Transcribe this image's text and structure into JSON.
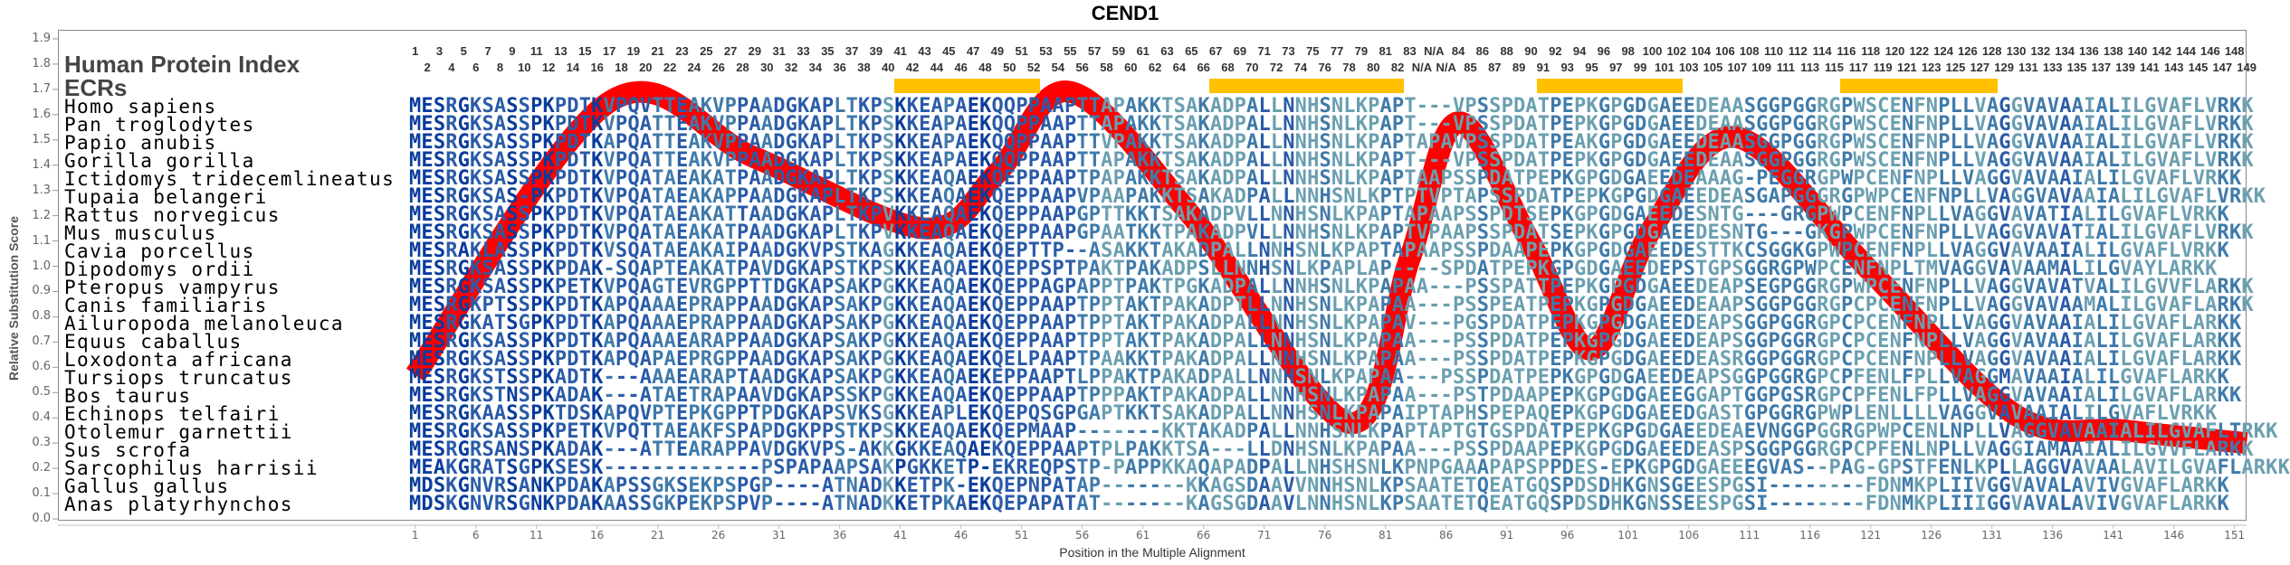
{
  "title": "CEND1",
  "labels": {
    "human_protein_index": "Human Protein Index",
    "ecrs": "ECRs"
  },
  "colors": {
    "curve": "#ff0000",
    "ecr": "#ffc000",
    "conserved": "#0a3c9c",
    "mostly_conserved": "#2a5ba8",
    "partial": "#3f7aaa",
    "variable": "#6a9fb0"
  },
  "header_odd": [
    "1",
    "3",
    "5",
    "7",
    "9",
    "11",
    "13",
    "15",
    "17",
    "19",
    "21",
    "23",
    "25",
    "27",
    "29",
    "31",
    "33",
    "35",
    "37",
    "39",
    "41",
    "43",
    "45",
    "47",
    "49",
    "51",
    "53",
    "55",
    "57",
    "59",
    "61",
    "63",
    "65",
    "67",
    "69",
    "71",
    "73",
    "75",
    "77",
    "79",
    "81",
    "83",
    "N/A",
    "84",
    "86",
    "88",
    "90",
    "92",
    "94",
    "96",
    "98",
    "100",
    "102",
    "104",
    "106",
    "108",
    "110",
    "112",
    "114",
    "116",
    "118",
    "120",
    "122",
    "124",
    "126",
    "128",
    "130",
    "132",
    "134",
    "136",
    "138",
    "140",
    "142",
    "144",
    "146",
    "148"
  ],
  "header_even": [
    "2",
    "4",
    "6",
    "8",
    "10",
    "12",
    "14",
    "16",
    "18",
    "20",
    "22",
    "24",
    "26",
    "28",
    "30",
    "32",
    "34",
    "36",
    "38",
    "40",
    "42",
    "44",
    "46",
    "48",
    "50",
    "52",
    "54",
    "56",
    "58",
    "60",
    "62",
    "64",
    "66",
    "68",
    "70",
    "72",
    "74",
    "76",
    "78",
    "80",
    "82",
    "N/A",
    "N/A",
    "85",
    "87",
    "89",
    "91",
    "93",
    "95",
    "97",
    "99",
    "101",
    "103",
    "105",
    "107",
    "109",
    "111",
    "113",
    "115",
    "117",
    "119",
    "121",
    "123",
    "125",
    "127",
    "129",
    "131",
    "133",
    "135",
    "137",
    "139",
    "141",
    "143",
    "145",
    "147",
    "149"
  ],
  "ecr_ranges": [
    [
      41,
      52
    ],
    [
      67,
      82
    ],
    [
      94,
      105
    ],
    [
      119,
      131
    ]
  ],
  "species": [
    {
      "name": "Homo sapiens",
      "seq": "MESRGKSASSPKPDTKVPQVTTEAKVPPAADGKAPLTKPSKKEAPAEKQQPPAAPTTAPAKKTSAKADPALLNNHSNLKPAPT---VPSSPDATPEPKGPGDGAEEDEAASGGPGGRGPWSCENFNPLLVAGGVAVAAIALILGVAFLVRKK"
    },
    {
      "name": "Pan troglodytes",
      "seq": "MESRGKSASSPKPDTKVPQATTEAKVPPAADGKAPLTKPSKKEAPAEKQQPPAAPTTAPAKKTSAKADPALLNNHSNLKPAPT---VPSSPDATPEPKGPGDGAEEDEAASGGPGGRGPWSCENFNPLLVAGGVAVAAIALILGVAFLVRKK"
    },
    {
      "name": "Papio anubis",
      "seq": "MESRGKSASSPKPDTKAPQATTEAKVPPAADGKAPLTKPSKKEAPAEKQQPPAAPTTVPAKKTSAKADPALLNNHSNLKPAPTAPAVPSSPDATPEAKGPGDGAEEDEAASGGPGGRGPWSCENFNPLLVAGGVAVAAIALILGVAFLVRKK"
    },
    {
      "name": "Gorilla gorilla",
      "seq": "MESRGKSASSPKPDTKVPQATTEAKVPPAADGKAPLTKPSKKEAPAEKQQPPAAPTTAPAKKTSAKADPALLNNHSNLKPAPT---VPSSPDATPEPKGPGDGAEEDEAASGGPGGRGPWSCENFNPLLVAGGVAVAAIALILGVAFLVRKK"
    },
    {
      "name": "Ictidomys tridecemlineatus",
      "seq": "MESRGKSASSPKPDTKVPQATAEAKATPAADGKAPLTKPSKKEAQAEKQEPPAAPTPAPAKKTSAKADPALLNNHSNLKPAPTAAPSSPDATPEPKGPGDGAEEDEAAAG-PEGGRGPWPCENFNPLLVAGGVAVAAIALILGVAFLVRKK"
    },
    {
      "name": "Tupaia belangeri",
      "seq": "MESRGKSAS-PKPDTKVPQATAEAKAPPAADGKAPLTKPSKKEAQAEKQEPPAAPVPAAPAKKTSAKADPALLNNHSNLKPTPTVPTAPSSPDATPEPKGPGDGAEEDEASGAPGGGRGPWPCENFNPLLVAGGVAVAAIALILGVAFLVRKK"
    },
    {
      "name": "Rattus norvegicus",
      "seq": "MESRGKSASSPKPDTKVPQATAEAKATTAADGKAPLTKPVKKEAQAEKQEPPAAPGPTTKKTSAKADPVLLNNHSNLKPAPTAPAAPSSPDTSEPKGPGDGAEEDESNTG---GRGPWPCENFNPLLVAGGVAVATIALILGVAFLVRKK"
    },
    {
      "name": "Mus musculus",
      "seq": "MESRGKSASSPKPDTKVPQATAEAKATPAADGKAPLTKPVKKEAQAEKQEPPAAPGPAATKKTPAKADPVLLNNHSNLKPAPTVPAAPSSPDATSEPKGPGDGAEEDESNTG---GKGPWPCENFNPLLVAGGVAVATIALILGVAFLVRKK"
    },
    {
      "name": "Cavia porcellus",
      "seq": "MESRAKLASSPKPDTKVSQATAEAKAIPAADGKVPSTKAGKKEAQAEKQEPTTP--ASAKKTAKADPALLNNHSNLKPAPTAPAAPSSPDAAPEPKGPGDGAEEDESTTKCSGGKGPWPCENFNPLLVAGGVAVAAIALILGVAFLVRKK"
    },
    {
      "name": "Dipodomys ordii",
      "seq": "MESRGKSASSPKPDAK-SQAPTEAKATPAVDGKAPSTKPSKKEAQAEKQEPPSPTPAKTPAKADPSLLNNHSNLKPAPLAP----SPDATPEPKGPGDGAEEDEPSTGPSGGRGPWPCENFNPLTMVAGGVAVAAMALILGVAYLARKK"
    },
    {
      "name": "Pteropus vampyrus",
      "seq": "MESRGKSASSPKPETKVPQAGTEVRGPPTTDGKAPSAKPGKKEAQAEKQEPPAGPAPPTPAKTPGKADPALLNNHSNLKPAPAA---PSSPATTPEPKGPGDGAEEDEAPSEGPGGRGPWPCENFNPLLVAGGVAVATVALILGVVFLARKK"
    },
    {
      "name": "Canis familiaris",
      "seq": "MESRGKPTSSPKPDTKAPQAAAEPRAPPAADGKAPSAKPGKKEAQAEKQEPPAAPTPPTAKTPAKADPTLLNNHSNLKPAPAA---PSSPEATPEPKGPGDGAEEDEAAPSGGPGGRGPCPCENFNPLLVAGGVAVAAMALILGVAFLARKK"
    },
    {
      "name": "Ailuropoda melanoleuca",
      "seq": "MESRGKATSGPKPDTKAPQAAAEPRAPPAADGKAPSAKPGKKEAQAEKQEPPAAPTPPTAKTPAKADPALLNNHSNLKPAPAV---PGSPDATPEPKGPGDGAEEDEAPSGGPGGRGPCPCENFNPLLVAGGVAVAAIALILGVAFLARKK"
    },
    {
      "name": "Equus caballus",
      "seq": "MESRGKSASSPKPDTKAPQAAAEARAPPAADGKAPSAKPGKKEAQAEKQEPPAAPTPPTAKTPAKADPALLNNHSNLKPAPAA---PSSPDATPEPKGPGDGAEEDEAPSGGPGGRGPCPCENFNPLLVAGGVAVAAIALILGVAFLARKK"
    },
    {
      "name": "Loxodonta africana",
      "seq": "MESRGKSASSPKPDTKAPQAPAEPRGPPAADGKAPSAKPGKKEAQAEKQELPAAPTPAAKKTPAKADPALLNNHSNLKPAPAA---PSSPDATPEPKGPGDGAEEDEASRGGPGGRGPCPCENFNPLLVAGGVAVAAIALILGVAFLARKK"
    },
    {
      "name": "Tursiops truncatus",
      "seq": "MESRGKSTSSPKADTK---AAAEARAPTAADGKAPSAKPGKKEAQAEKEPPAAPTLPPAKTPAKADPALLNNHSNLKPAPAA---PSSPDATPEPKGPGDGAEEDEAPSGGPGGRGPCPFENLFPLLVAGGMAVAAIALILGVAFLARKK"
    },
    {
      "name": "Bos taurus",
      "seq": "MESRGKSTNSPKADAK---ATAETRAPAAVDGKAPSSKPGKKEAQAEKQEPPAAPTPPPAKTPAKADPALLNNHSNLKPAPAA---PSTPDAAPEPKGPGDGAEEGGAPTGGPGSRGPCPFENLFPLLVAGGVAVAAIALILGVAFLARKK"
    },
    {
      "name": "Echinops telfairi",
      "seq": "MESRGKAASSPKTDSKAPQVPTEPKGPPTPDGKAPSVKSGKKEAPLEKQEPQSGPGAPTKKTSAKADPALLNNHSNLKPAPAIPTAPHSPEPAQEPKGPGDGAEEDGASTGPGGRGPWPLENLLLLVAGGVAVAAIALILGVAFLVRKK"
    },
    {
      "name": "Otolemur garnettii",
      "seq": "MESRGKSASSPKPETKVPQTTAEAKFSPAPDGKPPSTKPSKKEAQAEKQEPMAAP-------KKTAKADPALLNNHSNLKPAPTAPTGTGSPDATPEPKGPGDGAEEDEAEVNGGPGGRGPWPCENLNPLLVAGGVAVAAIALILGVAFLTRKK"
    },
    {
      "name": "Sus scrofa",
      "seq": "MESRGRSANSPKADAK---ATTEARAPPAVDGKVPS-AKKGKKEAQAEKQEPPAAPTPLPAKKTSA---LLDNHSNLKPAPAA---PSSPDAAPEPKGPGDGAEEDEASPSGGPGGRGPCPFENLNPLLVAGGIAMAAIALILGVVFLARKK"
    },
    {
      "name": "Sarcophilus harrisii",
      "seq": "MEAKGRATSGPKSESK-------------PSPAPAAPSAKPGKKETP-EKREQPSTP-PAPPKKAQAPADPALLNHSHSNLKPNPGAAAPAPSPPDES-EPKGPGDGAEEEGVAS--PAG-GPSTFENLKPLLAGGVAVAALAVILGVAFLARKK"
    },
    {
      "name": "Gallus gallus",
      "seq": "MDSKGNVRSANKPDAKAPSSGKSEKPSPGP----ATNADKKETPK-EKQEPNPATAP-------KKAGSDAAVVNNHSNLKPSAATETQEATGQSPDSDHKGNSGEESPGSI--------FDNMKPLIIVGGVAVALAVIVGVAFLARKK"
    },
    {
      "name": "Anas platyrhynchos",
      "seq": "MDSKGNVRSGNKPDAKAASSGKPEKPSPVP----ATNADKKETPKAEKQEPAPATAT-------KAGSGDAAVLNNHSNLKPSAATETQEATGQSPDSDHKGNSSEESPGSI--------FDNMKPLIIIGGVAVALAVIVGVAFLARKK"
    }
  ],
  "chart_data": {
    "type": "line",
    "title": "CEND1",
    "xlabel": "Position in the Multiple Alignment",
    "ylabel": "Relative Substitution Score",
    "ylim": [
      0.0,
      1.9
    ],
    "xlim": [
      1,
      152
    ],
    "yticks": [
      "0.0",
      "0.1",
      "0.2",
      "0.3",
      "0.4",
      "0.5",
      "0.6",
      "0.7",
      "0.8",
      "0.9",
      "1.0",
      "1.1",
      "1.2",
      "1.3",
      "1.4",
      "1.5",
      "1.6",
      "1.7",
      "1.8",
      "1.9"
    ],
    "xticks": [
      "1",
      "6",
      "11",
      "16",
      "21",
      "26",
      "31",
      "36",
      "41",
      "46",
      "51",
      "56",
      "61",
      "66",
      "71",
      "76",
      "81",
      "86",
      "91",
      "96",
      "101",
      "106",
      "111",
      "116",
      "121",
      "126",
      "131",
      "136",
      "141",
      "146",
      "151"
    ],
    "grid": false,
    "series": [
      {
        "x": [
          1,
          17,
          29,
          43,
          49,
          55,
          65,
          78,
          83,
          87,
          93,
          98,
          103,
          110,
          121,
          133,
          142,
          152
        ],
        "y": [
          0.57,
          1.65,
          1.43,
          1.15,
          1.37,
          1.69,
          1.2,
          0.38,
          1.03,
          1.57,
          1.09,
          0.67,
          1.15,
          1.51,
          0.98,
          0.41,
          0.35,
          0.3
        ]
      }
    ]
  }
}
